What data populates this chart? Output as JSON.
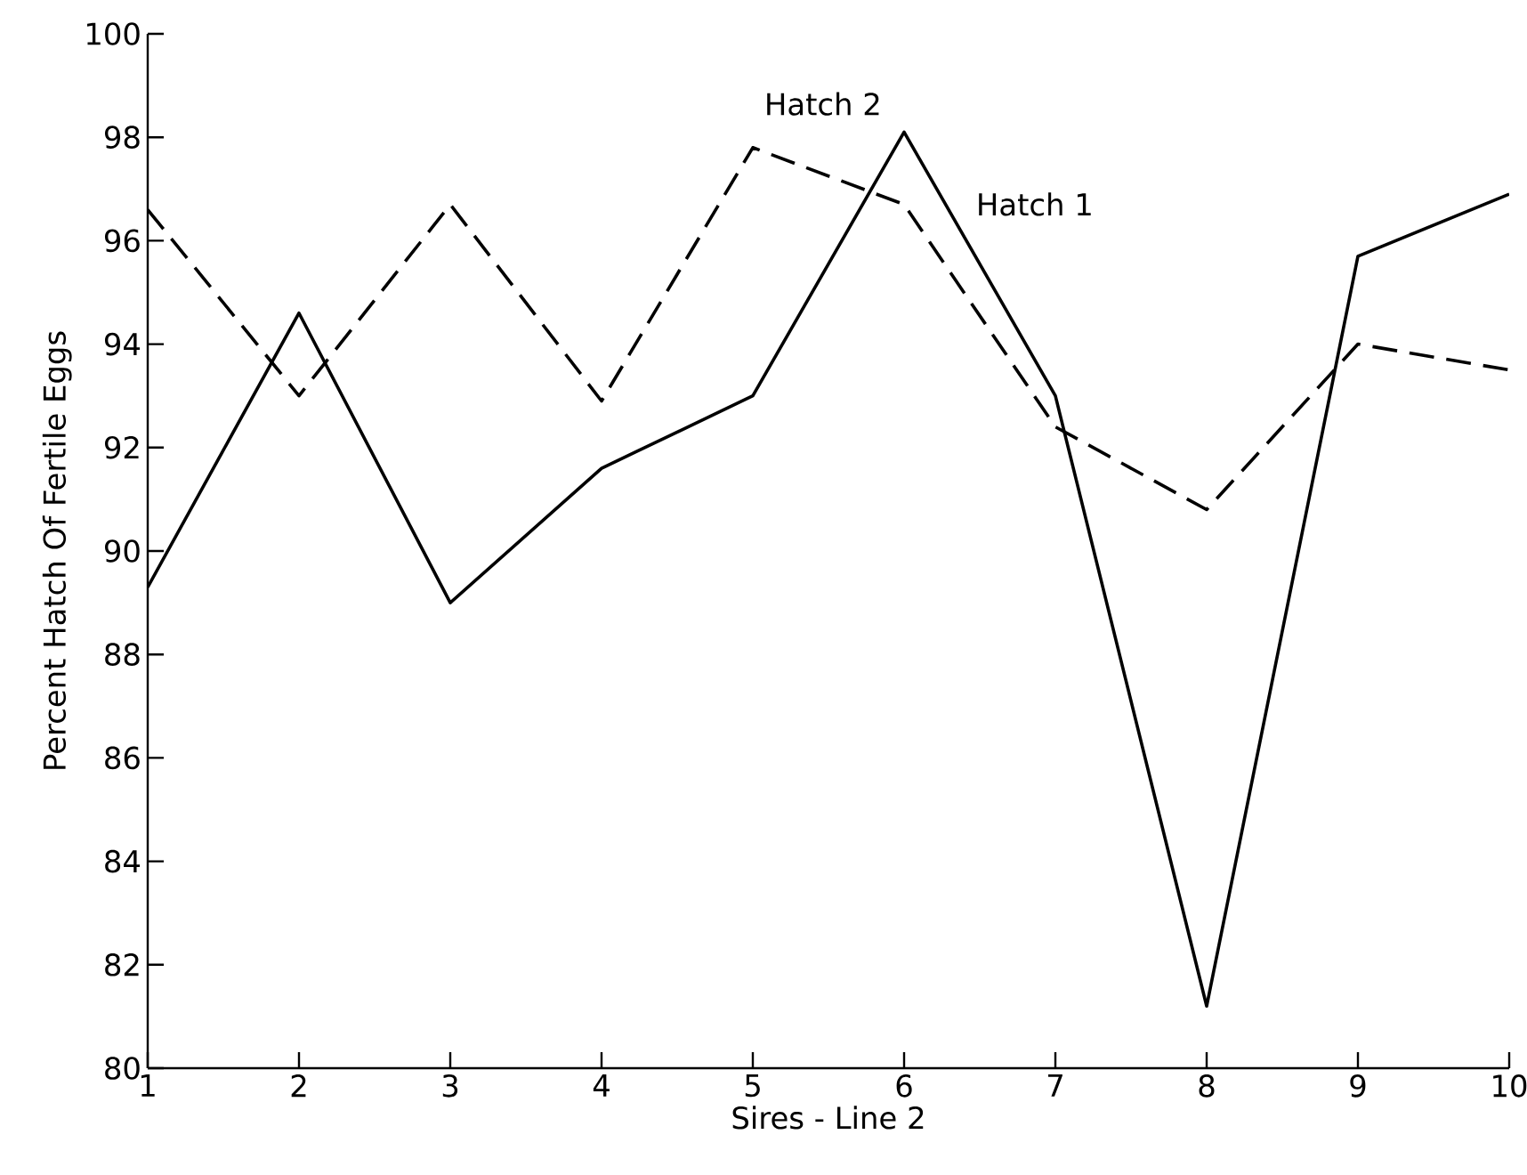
{
  "chart_data": {
    "type": "line",
    "xlabel": "Sires - Line 2",
    "ylabel": "Percent Hatch Of Fertile Eggs",
    "x": [
      1,
      2,
      3,
      4,
      5,
      6,
      7,
      8,
      9,
      10
    ],
    "xlim": [
      1,
      10
    ],
    "xticks": [
      1,
      2,
      3,
      4,
      5,
      6,
      7,
      8,
      9,
      10
    ],
    "ylim": [
      80,
      100
    ],
    "yticks": [
      80,
      82,
      84,
      86,
      88,
      90,
      92,
      94,
      96,
      98,
      100
    ],
    "grid": false,
    "legend": false,
    "marker": "none",
    "series": [
      {
        "name": "Hatch 1",
        "color": "#000000",
        "line_style": "solid",
        "values": [
          89.3,
          94.6,
          89.0,
          91.6,
          93.0,
          98.1,
          93.0,
          81.2,
          95.7,
          96.9
        ]
      },
      {
        "name": "Hatch 2",
        "color": "#000000",
        "line_style": "dashed",
        "values": [
          96.6,
          93.0,
          96.7,
          92.9,
          97.8,
          96.7,
          92.4,
          90.8,
          94.0,
          93.5
        ]
      }
    ]
  }
}
